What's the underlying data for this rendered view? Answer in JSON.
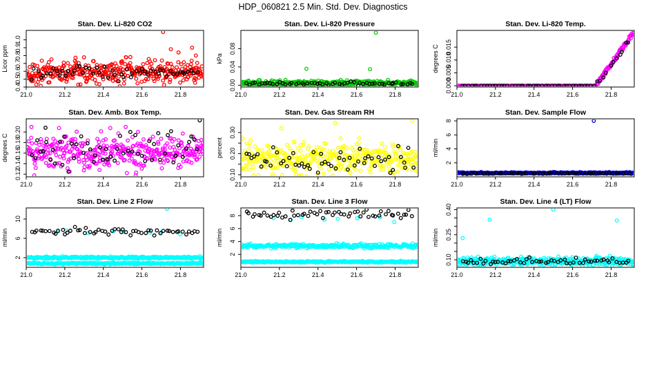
{
  "suptitle": "HDP_060821  2.5 Min. Std. Dev. Diagnostics",
  "chart_data": [
    {
      "type": "scatter",
      "title": "Stan. Dev. Li-820 CO2",
      "ylabel": "Licor ppm",
      "xlim": [
        21.0,
        21.92
      ],
      "ylim": [
        0.4,
        1.12
      ],
      "xticks": [
        21.0,
        21.2,
        21.4,
        21.6,
        21.8
      ],
      "xtick_labels": [
        "21.0",
        "21.2",
        "21.4",
        "21.6",
        "21.8"
      ],
      "yticks": [
        0.4,
        0.5,
        0.6,
        0.7,
        0.8,
        0.9,
        1.0
      ],
      "ytick_labels": [
        "0.4",
        "0.5",
        "0.6",
        "0.7",
        "0.8",
        "0.9",
        "1.0"
      ],
      "series": [
        {
          "name": "dense",
          "color": "#ff0000",
          "n": 380,
          "x_range": [
            21.0,
            21.92
          ],
          "center": 0.59,
          "spread": 0.07,
          "outliers": [
            [
              21.71,
              1.1
            ],
            [
              21.75,
              0.88
            ],
            [
              21.79,
              0.84
            ],
            [
              21.86,
              0.9
            ],
            [
              21.88,
              0.8
            ],
            [
              21.45,
              0.48
            ],
            [
              21.27,
              0.43
            ],
            [
              21.12,
              0.46
            ]
          ]
        },
        {
          "name": "sparse",
          "color": "#000000",
          "n": 55,
          "x_range": [
            21.02,
            21.9
          ],
          "center": 0.58,
          "spread": 0.05,
          "outliers": []
        }
      ]
    },
    {
      "type": "scatter",
      "title": "Stan. Dev. Li-820 Pressure",
      "ylabel": "kPa",
      "xlim": [
        21.0,
        21.92
      ],
      "ylim": [
        -0.004,
        0.12
      ],
      "xticks": [
        21.0,
        21.2,
        21.4,
        21.6,
        21.8
      ],
      "xtick_labels": [
        "21.0",
        "21.2",
        "21.4",
        "21.6",
        "21.8"
      ],
      "yticks": [
        0.0,
        0.04,
        0.08
      ],
      "ytick_labels": [
        "0.00",
        "0.04",
        "0.08"
      ],
      "series": [
        {
          "name": "dense",
          "color": "#00cc00",
          "n": 380,
          "x_range": [
            21.0,
            21.92
          ],
          "center": 0.0045,
          "spread": 0.0025,
          "outliers": [
            [
              21.7,
              0.115
            ],
            [
              21.34,
              0.036
            ],
            [
              21.67,
              0.035
            ],
            [
              21.04,
              0.01
            ]
          ]
        },
        {
          "name": "sparse",
          "color": "#000000",
          "n": 55,
          "x_range": [
            21.02,
            21.9
          ],
          "center": 0.004,
          "spread": 0.0018,
          "outliers": []
        }
      ]
    },
    {
      "type": "scatter",
      "title": "Stan. Dev. Li-820 Temp.",
      "ylabel": "degrees C",
      "xlim": [
        21.0,
        21.92
      ],
      "ylim": [
        -0.0005,
        0.0215
      ],
      "xticks": [
        21.0,
        21.2,
        21.4,
        21.6,
        21.8
      ],
      "xtick_labels": [
        "21.0",
        "21.2",
        "21.4",
        "21.6",
        "21.8"
      ],
      "yticks": [
        0.0,
        0.01
      ],
      "ytick_labels": [
        "0.000",
        "0.010"
      ],
      "extra_ytick_labels": [
        {
          "value": 0.005,
          "label": "0.005"
        },
        {
          "value": 0.015,
          "label": "0.015"
        }
      ],
      "series": [
        {
          "name": "dense",
          "color": "#ff00ff",
          "n": 380,
          "x_range": [
            21.0,
            21.92
          ],
          "center": 0.0,
          "spread": 0.0,
          "ramp": {
            "start": 21.72,
            "end": 21.91,
            "from": 0.0,
            "to": 0.02
          },
          "outliers": []
        },
        {
          "name": "sparse",
          "color": "#000000",
          "n": 55,
          "x_range": [
            21.02,
            21.9
          ],
          "center": 0.0,
          "spread": 0.0,
          "ramp": {
            "start": 21.72,
            "end": 21.91,
            "from": 0.0,
            "to": 0.019
          },
          "outliers": []
        }
      ]
    },
    {
      "type": "scatter",
      "title": "Stan. Dev. Amb. Box Temp.",
      "ylabel": "degrees C",
      "xlim": [
        21.0,
        21.92
      ],
      "ylim": [
        0.115,
        0.225
      ],
      "xticks": [
        21.0,
        21.2,
        21.4,
        21.6,
        21.8
      ],
      "xtick_labels": [
        "21.0",
        "21.2",
        "21.4",
        "21.6",
        "21.8"
      ],
      "yticks": [
        0.12,
        0.14,
        0.16,
        0.18,
        0.2
      ],
      "ytick_labels": [
        "0.12",
        "0.14",
        "0.16",
        "0.18",
        "0.20"
      ],
      "series": [
        {
          "name": "dense",
          "color": "#ff00ff",
          "n": 380,
          "x_range": [
            21.0,
            21.92
          ],
          "center": 0.162,
          "spread": 0.017,
          "outliers": [
            [
              21.57,
              0.123
            ],
            [
              21.38,
              0.128
            ]
          ]
        },
        {
          "name": "sparse",
          "color": "#000000",
          "n": 55,
          "x_range": [
            21.02,
            21.9
          ],
          "center": 0.165,
          "spread": 0.018,
          "outliers": [
            [
              21.9,
              0.222
            ],
            [
              21.1,
              0.208
            ]
          ]
        }
      ]
    },
    {
      "type": "scatter",
      "title": "Stan. Dev. Gas Stream RH",
      "ylabel": "percent",
      "xlim": [
        21.0,
        21.92
      ],
      "ylim": [
        0.09,
        0.365
      ],
      "xticks": [
        21.0,
        21.2,
        21.4,
        21.6,
        21.8
      ],
      "xtick_labels": [
        "21.0",
        "21.2",
        "21.4",
        "21.6",
        "21.8"
      ],
      "yticks": [
        0.1,
        0.15,
        0.2,
        0.25,
        0.3
      ],
      "ytick_labels": [
        "0.10",
        "",
        "0.20",
        "",
        "0.30"
      ],
      "series": [
        {
          "name": "dense",
          "color": "#ffff00",
          "n": 380,
          "x_range": [
            21.0,
            21.92
          ],
          "center": 0.175,
          "spread": 0.035,
          "outliers": [
            [
              21.49,
              0.345
            ],
            [
              21.89,
              0.355
            ],
            [
              21.21,
              0.32
            ],
            [
              21.43,
              0.105
            ]
          ]
        },
        {
          "name": "sparse",
          "color": "#000000",
          "n": 55,
          "x_range": [
            21.02,
            21.9
          ],
          "center": 0.17,
          "spread": 0.025,
          "outliers": []
        }
      ]
    },
    {
      "type": "scatter",
      "title": "Stan. Dev. Sample Flow",
      "ylabel": "ml/min",
      "xlim": [
        21.0,
        21.92
      ],
      "ylim": [
        0.0,
        8.3
      ],
      "xticks": [
        21.0,
        21.2,
        21.4,
        21.6,
        21.8
      ],
      "xtick_labels": [
        "21.0",
        "21.2",
        "21.4",
        "21.6",
        "21.8"
      ],
      "yticks": [
        2,
        4,
        6,
        8
      ],
      "ytick_labels": [
        "2",
        "4",
        "6",
        "8"
      ],
      "series": [
        {
          "name": "dense",
          "color": "#0000cc",
          "n": 380,
          "x_range": [
            21.0,
            21.92
          ],
          "center": 0.55,
          "spread": 0.05,
          "outliers": [
            [
              21.71,
              8.0
            ]
          ]
        },
        {
          "name": "sparse",
          "color": "#000000",
          "n": 55,
          "x_range": [
            21.02,
            21.9
          ],
          "center": 0.5,
          "spread": 0.04,
          "outliers": []
        }
      ]
    },
    {
      "type": "scatter",
      "title": "Stan. Dev. Line 2 Flow",
      "ylabel": "ml/min",
      "xlim": [
        21.0,
        21.92
      ],
      "ylim": [
        0.0,
        12.3
      ],
      "xticks": [
        21.0,
        21.2,
        21.4,
        21.6,
        21.8
      ],
      "xtick_labels": [
        "21.0",
        "21.2",
        "21.4",
        "21.6",
        "21.8"
      ],
      "yticks": [
        2,
        6,
        10
      ],
      "ytick_labels": [
        "2",
        "6",
        "10"
      ],
      "series": [
        {
          "name": "band-upper",
          "color": "#00ffff",
          "n": 300,
          "x_range": [
            21.0,
            21.92
          ],
          "center": 2.0,
          "spread": 0.12,
          "outliers": [
            [
              21.73,
              12.1
            ]
          ]
        },
        {
          "name": "band-lower",
          "color": "#00ffff",
          "n": 300,
          "x_range": [
            21.0,
            21.92
          ],
          "center": 0.8,
          "spread": 0.08,
          "outliers": []
        },
        {
          "name": "sparse-cyan",
          "color": "#00ffff",
          "n": 8,
          "x_range": [
            21.1,
            21.85
          ],
          "center": 7.2,
          "spread": 0.2,
          "outliers": []
        },
        {
          "name": "sparse",
          "color": "#000000",
          "n": 55,
          "x_range": [
            21.02,
            21.9
          ],
          "center": 7.4,
          "spread": 0.35,
          "outliers": []
        }
      ]
    },
    {
      "type": "scatter",
      "title": "Stan. Dev. Line 3 Flow",
      "ylabel": "ml/min",
      "xlim": [
        21.0,
        21.92
      ],
      "ylim": [
        0.0,
        9.2
      ],
      "xticks": [
        21.0,
        21.2,
        21.4,
        21.6,
        21.8
      ],
      "xtick_labels": [
        "21.0",
        "21.2",
        "21.4",
        "21.6",
        "21.8"
      ],
      "yticks": [
        2,
        4,
        6,
        8
      ],
      "ytick_labels": [
        "2",
        "4",
        "6",
        "8"
      ],
      "series": [
        {
          "name": "band-upper",
          "color": "#00ffff",
          "n": 300,
          "x_range": [
            21.0,
            21.92
          ],
          "center": 3.3,
          "spread": 0.15,
          "outliers": []
        },
        {
          "name": "band-lower",
          "color": "#00ffff",
          "n": 300,
          "x_range": [
            21.0,
            21.92
          ],
          "center": 0.85,
          "spread": 0.06,
          "outliers": []
        },
        {
          "name": "sparse-cyan",
          "color": "#00ffff",
          "n": 8,
          "x_range": [
            21.1,
            21.88
          ],
          "center": 7.6,
          "spread": 0.3,
          "outliers": []
        },
        {
          "name": "sparse",
          "color": "#000000",
          "n": 55,
          "x_range": [
            21.02,
            21.9
          ],
          "center": 8.2,
          "spread": 0.35,
          "outliers": []
        }
      ]
    },
    {
      "type": "scatter",
      "title": "Stan. Dev. Line 4 (LT) Flow",
      "ylabel": "ml/min",
      "xlim": [
        21.0,
        21.92
      ],
      "ylim": [
        0.055,
        0.41
      ],
      "xticks": [
        21.0,
        21.2,
        21.4,
        21.6,
        21.8
      ],
      "xtick_labels": [
        "21.0",
        "21.2",
        "21.4",
        "21.6",
        "21.8"
      ],
      "yticks": [
        0.1,
        0.15,
        0.2,
        0.25,
        0.3,
        0.35,
        0.4
      ],
      "ytick_labels": [
        "0.10",
        "",
        "",
        "0.25",
        "",
        "",
        "0.40"
      ],
      "series": [
        {
          "name": "dense",
          "color": "#00ffff",
          "n": 380,
          "x_range": [
            21.0,
            21.92
          ],
          "center": 0.09,
          "spread": 0.012,
          "outliers": [
            [
              21.03,
              0.23
            ],
            [
              21.17,
              0.34
            ],
            [
              21.5,
              0.4
            ],
            [
              21.83,
              0.335
            ]
          ]
        },
        {
          "name": "sparse",
          "color": "#000000",
          "n": 55,
          "x_range": [
            21.02,
            21.9
          ],
          "center": 0.09,
          "spread": 0.01,
          "outliers": []
        }
      ]
    }
  ]
}
